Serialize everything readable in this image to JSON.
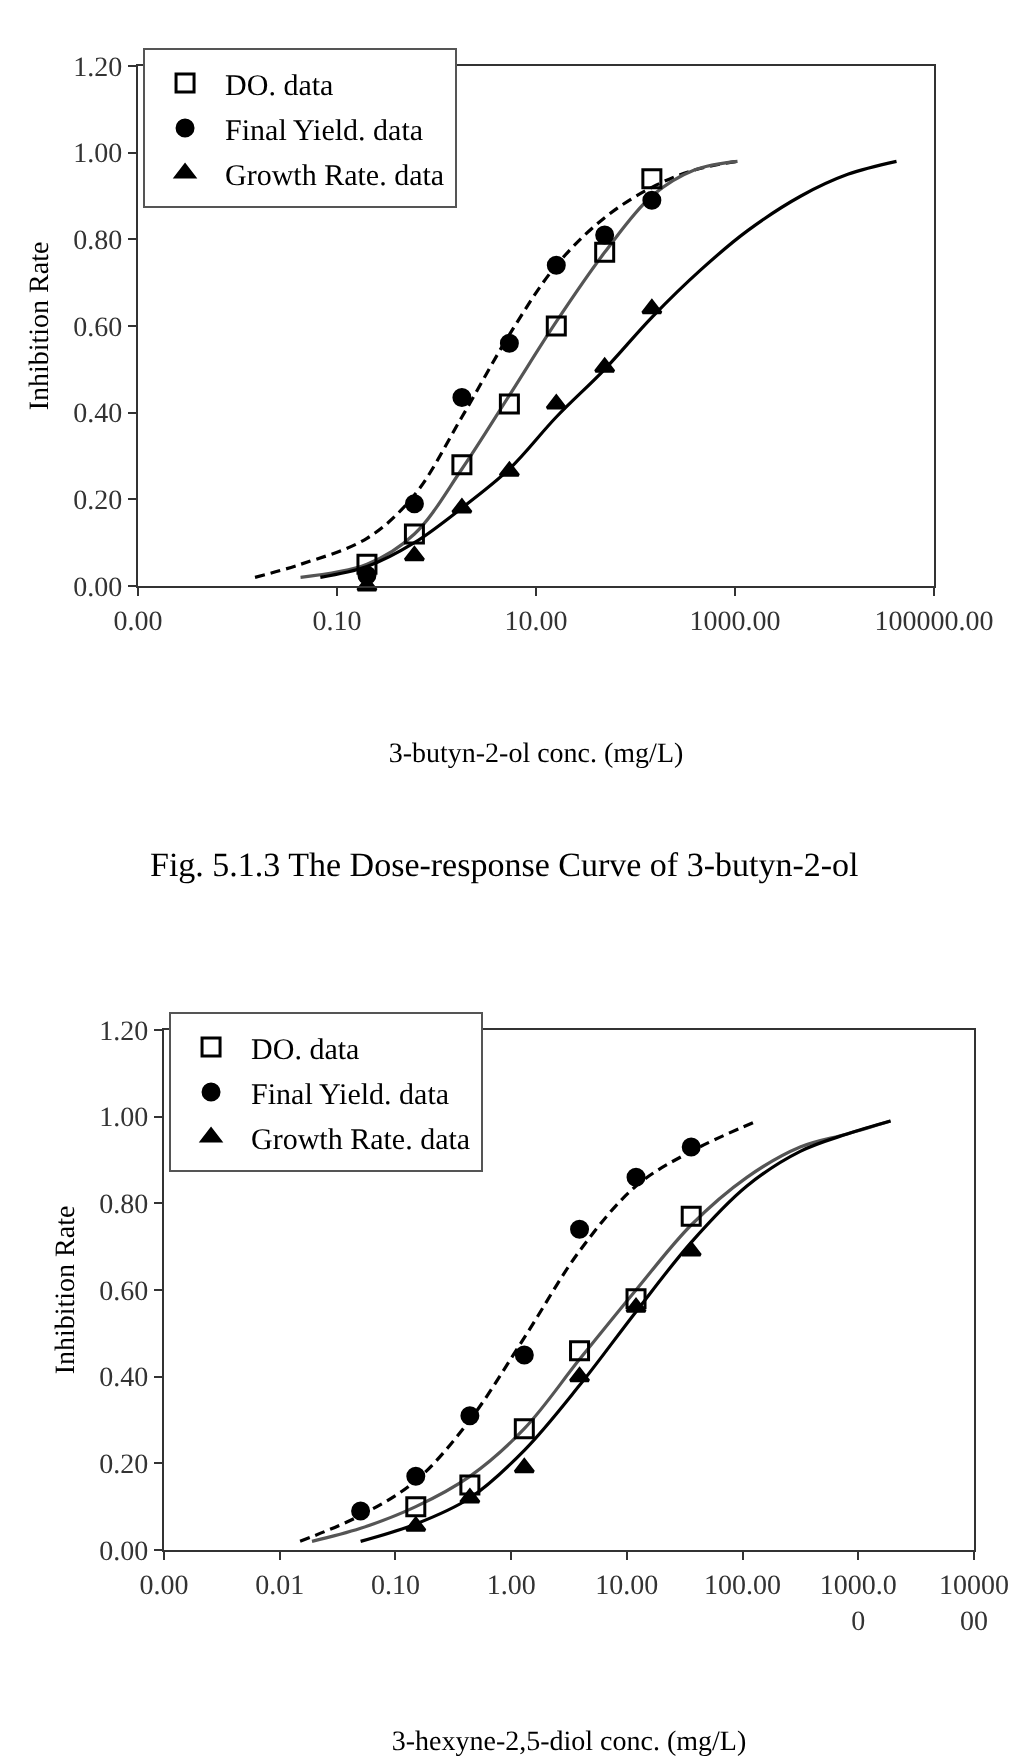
{
  "chart_data": [
    {
      "type": "scatter",
      "xlabel": "3-butyn-2-ol conc. (mg/L)",
      "ylabel": "Inhibition Rate",
      "log": "x",
      "legend": "top left",
      "xlim": [
        0.001,
        100000
      ],
      "xticks": [
        {
          "value": 0.001,
          "label": "0.00"
        },
        {
          "value": 0.1,
          "label": "0.10"
        },
        {
          "value": 10,
          "label": "10.00"
        },
        {
          "value": 1000,
          "label": "1000.00"
        },
        {
          "value": 100000,
          "label": "100000.00"
        }
      ],
      "ylim": [
        0,
        1.2
      ],
      "yticks": [
        {
          "value": 0,
          "label": "0.00"
        },
        {
          "value": 0.2,
          "label": "0.20"
        },
        {
          "value": 0.4,
          "label": "0.40"
        },
        {
          "value": 0.6,
          "label": "0.60"
        },
        {
          "value": 0.8,
          "label": "0.80"
        },
        {
          "value": 1.0,
          "label": "1.00"
        },
        {
          "value": 1.2,
          "label": "1.20"
        }
      ],
      "annotations": [
        "Fig. 5.1.3 The Dose-response Curve of 3-butyn-2-ol"
      ],
      "series": [
        {
          "type": "line",
          "color": "#000000",
          "line_style": "dashed",
          "marker": "none",
          "x": [
            0.015,
            0.043,
            0.2,
            0.6,
            1.8,
            5.4,
            16,
            49,
            146,
            390,
            1060
          ],
          "values": [
            0.02,
            0.05,
            0.11,
            0.21,
            0.39,
            0.58,
            0.74,
            0.85,
            0.92,
            0.96,
            0.98
          ]
        },
        {
          "type": "line",
          "color": "#555555",
          "line_style": "solid",
          "marker": "none",
          "x": [
            0.043,
            0.2,
            0.6,
            1.8,
            5.4,
            16,
            49,
            146,
            390,
            1060
          ],
          "values": [
            0.02,
            0.05,
            0.12,
            0.27,
            0.44,
            0.61,
            0.77,
            0.9,
            0.96,
            0.98
          ]
        },
        {
          "type": "line",
          "color": "#000000",
          "line_style": "solid",
          "marker": "none",
          "x": [
            0.068,
            0.2,
            0.6,
            1.8,
            5.4,
            16,
            49,
            146,
            455,
            1340,
            4600,
            13600,
            42000
          ],
          "values": [
            0.02,
            0.045,
            0.1,
            0.18,
            0.27,
            0.39,
            0.5,
            0.62,
            0.73,
            0.82,
            0.9,
            0.95,
            0.98
          ]
        },
        {
          "name": "DO. data",
          "color": "#000000",
          "marker": "square",
          "x": [
            0.2,
            0.6,
            1.8,
            5.4,
            16,
            49,
            146
          ],
          "values": [
            0.05,
            0.12,
            0.28,
            0.42,
            0.6,
            0.77,
            0.94
          ]
        },
        {
          "name": "Final Yield. data",
          "color": "#000000",
          "marker": "circle",
          "x": [
            0.2,
            0.6,
            1.8,
            5.4,
            16,
            49,
            146
          ],
          "values": [
            0.025,
            0.19,
            0.435,
            0.56,
            0.74,
            0.81,
            0.89
          ]
        },
        {
          "name": "Growth Rate. data",
          "color": "#000000",
          "marker": "triangle",
          "x": [
            0.2,
            0.6,
            1.8,
            5.4,
            16,
            49,
            146
          ],
          "values": [
            0.0,
            0.07,
            0.18,
            0.265,
            0.42,
            0.505,
            0.64
          ]
        }
      ]
    },
    {
      "type": "scatter",
      "xlabel": "3-hexyne-2,5-diol conc. (mg/L)",
      "ylabel": "Inhibition Rate",
      "log": "x",
      "legend": "top left",
      "xlim": [
        0.001,
        10000
      ],
      "xticks": [
        {
          "value": 0.001,
          "label": "0.00"
        },
        {
          "value": 0.01,
          "label": "0.01"
        },
        {
          "value": 0.1,
          "label": "0.10"
        },
        {
          "value": 1,
          "label": "1.00"
        },
        {
          "value": 10,
          "label": "10.00"
        },
        {
          "value": 100,
          "label": "100.00"
        },
        {
          "value": 1000,
          "label": "1000.0\n0"
        },
        {
          "value": 10000,
          "label": "10000\n00"
        }
      ],
      "ylim": [
        0,
        1.2
      ],
      "yticks": [
        {
          "value": 0,
          "label": "0.00"
        },
        {
          "value": 0.2,
          "label": "0.20"
        },
        {
          "value": 0.4,
          "label": "0.40"
        },
        {
          "value": 0.6,
          "label": "0.60"
        },
        {
          "value": 0.8,
          "label": "0.80"
        },
        {
          "value": 1.0,
          "label": "1.00"
        },
        {
          "value": 1.2,
          "label": "1.20"
        }
      ],
      "series": [
        {
          "type": "line",
          "color": "#000000",
          "line_style": "dashed",
          "marker": "none",
          "x": [
            0.015,
            0.05,
            0.15,
            0.44,
            1.3,
            3.9,
            12,
            36,
            133
          ],
          "values": [
            0.02,
            0.08,
            0.16,
            0.3,
            0.49,
            0.69,
            0.84,
            0.92,
            0.99
          ]
        },
        {
          "type": "line",
          "color": "#555555",
          "line_style": "solid",
          "marker": "none",
          "x": [
            0.019,
            0.05,
            0.15,
            0.44,
            1.3,
            3.9,
            12,
            36,
            109,
            315,
            800,
            1900
          ],
          "values": [
            0.02,
            0.05,
            0.1,
            0.17,
            0.28,
            0.44,
            0.6,
            0.75,
            0.86,
            0.93,
            0.96,
            0.99
          ]
        },
        {
          "type": "line",
          "color": "#000000",
          "line_style": "solid",
          "marker": "none",
          "x": [
            0.05,
            0.15,
            0.44,
            1.3,
            3.9,
            12,
            36,
            109,
            315,
            800,
            1900
          ],
          "values": [
            0.02,
            0.06,
            0.12,
            0.23,
            0.38,
            0.55,
            0.71,
            0.84,
            0.92,
            0.96,
            0.99
          ]
        },
        {
          "name": "DO. data",
          "color": "#000000",
          "marker": "square",
          "x": [
            0.15,
            0.44,
            1.3,
            3.9,
            12,
            36
          ],
          "values": [
            0.1,
            0.15,
            0.28,
            0.46,
            0.58,
            0.77
          ]
        },
        {
          "name": "Final Yield. data",
          "color": "#000000",
          "marker": "circle",
          "x": [
            0.05,
            0.15,
            0.44,
            1.3,
            3.9,
            12,
            36
          ],
          "values": [
            0.09,
            0.17,
            0.31,
            0.45,
            0.74,
            0.86,
            0.93
          ]
        },
        {
          "name": "Growth Rate. data",
          "color": "#000000",
          "marker": "triangle",
          "x": [
            0.15,
            0.44,
            1.3,
            3.9,
            12,
            36
          ],
          "values": [
            0.055,
            0.12,
            0.19,
            0.4,
            0.56,
            0.69
          ]
        }
      ]
    }
  ]
}
